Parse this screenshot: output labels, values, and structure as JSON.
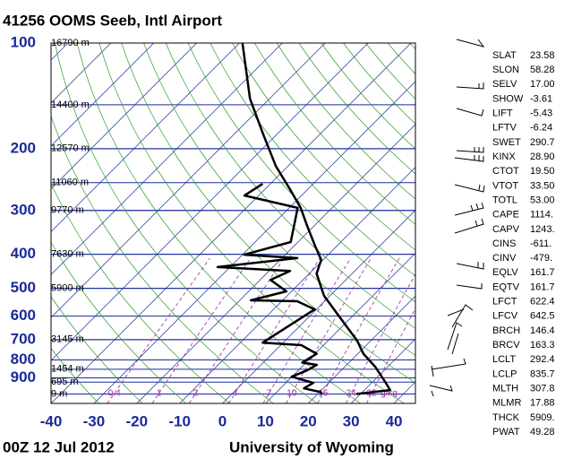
{
  "chart_data": {
    "type": "skew-t",
    "title": "41256 OOMS Seeb, Intl Airport",
    "time": "00Z 12 Jul 2012",
    "source": "University of Wyoming",
    "xlim": [
      -40,
      45
    ],
    "xticks": [
      -40,
      -30,
      -20,
      -10,
      0,
      10,
      20,
      30,
      40
    ],
    "ylim": [
      1064,
      100
    ],
    "log_y": true,
    "yticks": [
      100,
      200,
      300,
      400,
      500,
      600,
      700,
      800,
      900
    ],
    "height_labels": [
      {
        "value": 100,
        "label": "16790 m"
      },
      {
        "value": 150,
        "label": "14400 m"
      },
      {
        "value": 200,
        "label": "12570 m"
      },
      {
        "value": 250,
        "label": "11060 m"
      },
      {
        "value": 300,
        "label": "9770 m"
      },
      {
        "value": 400,
        "label": "7630 m"
      },
      {
        "value": 500,
        "label": "5900 m"
      },
      {
        "value": 700,
        "label": "3145 m"
      },
      {
        "value": 850,
        "label": "1454 m"
      },
      {
        "value": 925,
        "label": "695 m"
      },
      {
        "value": 1000,
        "label": "9 m"
      }
    ],
    "mixing_ratios": [
      {
        "value": 0.4,
        "label": "0.4"
      },
      1,
      2,
      4,
      7,
      10,
      16,
      24,
      32
    ],
    "mixing_ratio_unit": "g/kg",
    "series": [
      {
        "color": "#000000",
        "pressure": [
          100,
          144,
          182,
          224,
          259,
          295,
          328,
          380,
          415,
          454,
          525,
          590,
          705,
          768,
          837,
          920,
          975,
          1000
        ],
        "values": [
          -79.3,
          -64.6,
          -53.2,
          -42.9,
          -34.6,
          -27.3,
          -22.2,
          -14.9,
          -10.4,
          -8.3,
          -1.4,
          5.8,
          16.8,
          21.3,
          27.1,
          32.7,
          36,
          29
        ]
      },
      {
        "color": "#000000",
        "pressure": [
          252,
          272,
          295,
          369,
          401,
          410,
          435,
          446,
          473,
          510,
          541,
          544,
          574,
          714,
          726,
          768,
          814,
          826,
          857,
          893,
          930,
          964,
          988,
          1000
        ],
        "values": [
          -41.8,
          -43.3,
          -28,
          -21.7,
          -29.6,
          -16.4,
          -32.9,
          -15.1,
          -17.6,
          -11.2,
          -17.4,
          -6.4,
          -0.4,
          -4.8,
          4.8,
          10.4,
          9.1,
          13,
          12,
          9.9,
          16.4,
          15.5,
          20.3,
          21
        ]
      }
    ],
    "indices": [
      [
        "SLAT",
        "23.58"
      ],
      [
        "SLON",
        "58.28"
      ],
      [
        "SELV",
        "17.00"
      ],
      [
        "SHOW",
        "-3.61"
      ],
      [
        "LIFT",
        "-5.43"
      ],
      [
        "LFTV",
        "-6.24"
      ],
      [
        "SWET",
        "290.7"
      ],
      [
        "KINX",
        "28.90"
      ],
      [
        "CTOT",
        "19.50"
      ],
      [
        "VTOT",
        "33.50"
      ],
      [
        "TOTL",
        "53.00"
      ],
      [
        "CAPE",
        "1114."
      ],
      [
        "CAPV",
        "1243."
      ],
      [
        "CINS",
        "-611."
      ],
      [
        "CINV",
        "-479."
      ],
      [
        "EQLV",
        "161.7"
      ],
      [
        "EQTV",
        "161.7"
      ],
      [
        "LFCT",
        "622.4"
      ],
      [
        "LFCV",
        "642.5"
      ],
      [
        "BRCH",
        "146.4"
      ],
      [
        "BRCV",
        "163.3"
      ],
      [
        "LCLT",
        "292.4"
      ],
      [
        "LCLP",
        "835.7"
      ],
      [
        "MLTH",
        "307.8"
      ],
      [
        "MLMR",
        "17.88"
      ],
      [
        "THCK",
        "5909."
      ],
      [
        "PWAT",
        "49.28"
      ]
    ]
  }
}
